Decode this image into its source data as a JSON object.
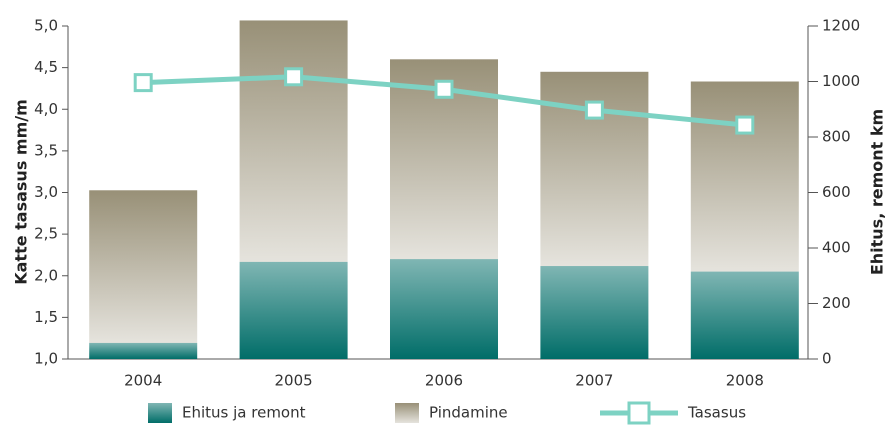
{
  "chart_data": {
    "type": "bar-line",
    "ylabel": "Katte tasasus mm/m",
    "y2label": "Ehitus, remont km",
    "categories": [
      "2004",
      "2005",
      "2006",
      "2007",
      "2008"
    ],
    "series": [
      {
        "name": "Ehitus ja remont",
        "type": "bar",
        "axis": "y2",
        "color": "#006d68",
        "values": [
          58,
          350,
          360,
          335,
          315
        ]
      },
      {
        "name": "Pindamine",
        "type": "bar",
        "axis": "y2",
        "color": "#989077",
        "values": [
          550,
          870,
          720,
          700,
          685
        ]
      },
      {
        "name": "Tasasus",
        "type": "line",
        "axis": "y",
        "color": "#7dd2c3",
        "values": [
          4.32,
          4.39,
          4.24,
          3.99,
          3.81
        ]
      }
    ],
    "ylim": [
      1,
      5
    ],
    "yticks": [
      {
        "value": 1,
        "label": "1,0"
      },
      {
        "value": 1.5,
        "label": "1,5"
      },
      {
        "value": 2,
        "label": "2,0"
      },
      {
        "value": 2.5,
        "label": "2,5"
      },
      {
        "value": 3,
        "label": "3,0"
      },
      {
        "value": 3.5,
        "label": "3,5"
      },
      {
        "value": 4,
        "label": "4,0"
      },
      {
        "value": 4.5,
        "label": "4,5"
      },
      {
        "value": 5,
        "label": "5,0"
      }
    ],
    "y2lim": [
      0,
      1200
    ],
    "y2ticks": [
      0,
      200,
      400,
      600,
      800,
      1000,
      1200
    ],
    "legend": "bottom"
  }
}
